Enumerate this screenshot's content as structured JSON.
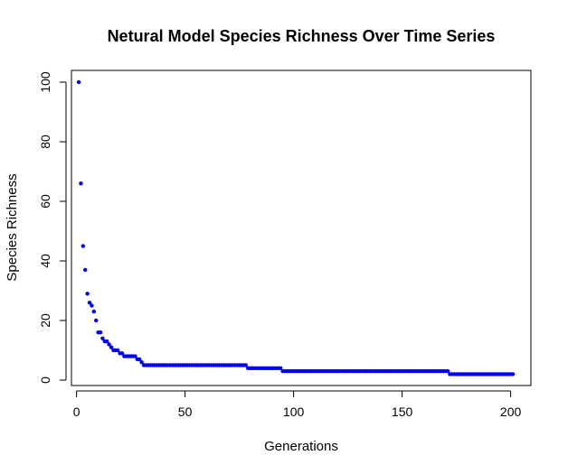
{
  "chart_data": {
    "type": "scatter",
    "title": "Netural Model Species Richness Over Time Series",
    "xlabel": "Generations",
    "ylabel": "Species Richness",
    "xlim": [
      1,
      201
    ],
    "ylim": [
      0,
      100
    ],
    "xticks": [
      "0",
      "50",
      "100",
      "150",
      "200"
    ],
    "yticks": [
      "0",
      "20",
      "40",
      "60",
      "80",
      "100"
    ],
    "grid": false,
    "point_color": "#0000ff",
    "series": [
      {
        "x": [
          1,
          2,
          3,
          4,
          5,
          6,
          7,
          8,
          9,
          10,
          11,
          12,
          13,
          14,
          15,
          16,
          17,
          18,
          19,
          20,
          21,
          22,
          23,
          24,
          25,
          26,
          27,
          28,
          29,
          30
        ],
        "y": [
          100,
          66,
          45,
          37,
          29,
          26,
          25,
          23,
          20,
          16,
          16,
          14,
          13,
          13,
          12,
          11,
          10,
          10,
          10,
          9,
          9,
          8,
          8,
          8,
          8,
          8,
          8,
          7,
          7,
          6
        ]
      },
      {
        "segments": [
          {
            "from": 31,
            "to": 78,
            "y": 5
          },
          {
            "from": 79,
            "to": 94,
            "y": 4
          },
          {
            "from": 95,
            "to": 171,
            "y": 3
          },
          {
            "from": 172,
            "to": 201,
            "y": 2
          }
        ]
      }
    ]
  }
}
